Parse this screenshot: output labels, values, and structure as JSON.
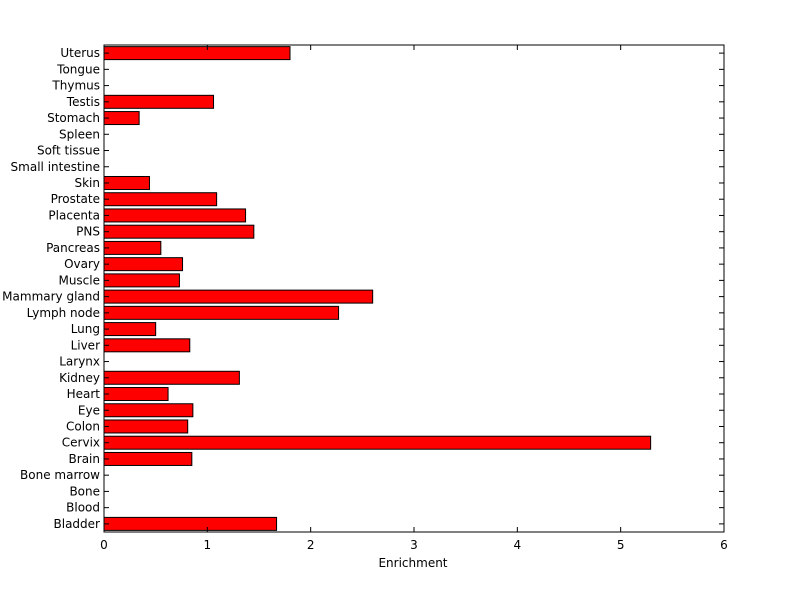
{
  "chart_data": {
    "type": "bar",
    "orientation": "horizontal",
    "categories": [
      "Bladder",
      "Blood",
      "Bone",
      "Bone marrow",
      "Brain",
      "Cervix",
      "Colon",
      "Eye",
      "Heart",
      "Kidney",
      "Larynx",
      "Liver",
      "Lung",
      "Lymph node",
      "Mammary gland",
      "Muscle",
      "Ovary",
      "Pancreas",
      "PNS",
      "Placenta",
      "Prostate",
      "Skin",
      "Small intestine",
      "Soft tissue",
      "Spleen",
      "Stomach",
      "Testis",
      "Thymus",
      "Tongue",
      "Uterus"
    ],
    "values": [
      1.67,
      0,
      0,
      0,
      0.85,
      5.29,
      0.81,
      0.86,
      0.62,
      1.31,
      0,
      0.83,
      0.5,
      2.27,
      2.6,
      0.73,
      0.76,
      0.55,
      1.45,
      1.37,
      1.09,
      0.44,
      0,
      0,
      0,
      0.34,
      1.06,
      0,
      0,
      1.8
    ],
    "xlabel": "Enrichment",
    "ylabel": "",
    "title": "",
    "xlim": [
      0,
      6
    ],
    "xticks": [
      "0",
      "1",
      "2",
      "3",
      "4",
      "5",
      "6"
    ],
    "bar_color": "#ff0000",
    "grid": false
  }
}
